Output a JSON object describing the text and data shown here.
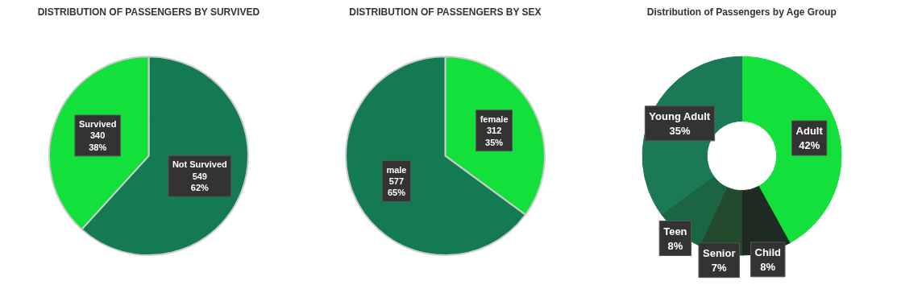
{
  "chart_data": [
    {
      "type": "pie",
      "title": "DISTRIBUTION OF PASSENGERS BY SURVIVED",
      "categories": [
        "Not Survived",
        "Survived"
      ],
      "values": [
        549,
        340
      ],
      "colors": [
        "#147a52",
        "#14e03c"
      ],
      "value_labels": [
        "549\n62%",
        "340\n38%"
      ]
    },
    {
      "type": "pie",
      "title": "DISTRIBUTION OF PASSENGERS BY SEX",
      "categories": [
        "female",
        "male"
      ],
      "values": [
        312,
        577
      ],
      "colors": [
        "#14e03c",
        "#147a52"
      ],
      "value_labels": [
        "312\n35%",
        "577\n65%"
      ]
    },
    {
      "type": "donut",
      "title": "Distribution of Passengers by Age Group",
      "categories": [
        "Adult",
        "Child",
        "Senior",
        "Teen",
        "Young Adult"
      ],
      "values": [
        42,
        8,
        7,
        8,
        35
      ],
      "colors": [
        "#14e03c",
        "#1e2a22",
        "#234a2c",
        "#1a6640",
        "#1b7a55"
      ],
      "value_labels": [
        "42%",
        "8%",
        "7%",
        "8%",
        "35%"
      ]
    }
  ]
}
